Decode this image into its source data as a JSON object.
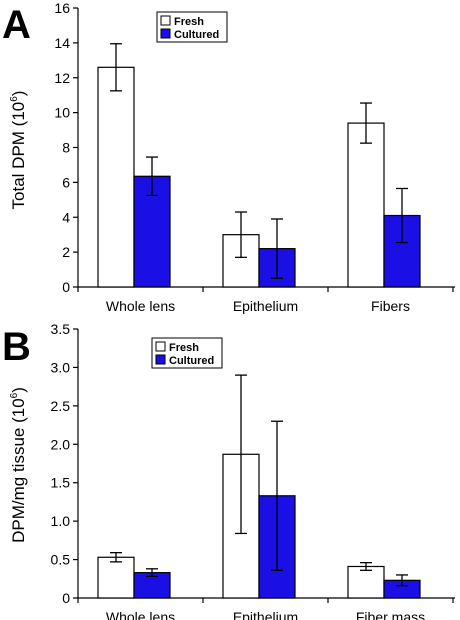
{
  "colors": {
    "fresh": "#ffffff",
    "cultured": "#1a10e6",
    "stroke": "#000000"
  },
  "chart_data": [
    {
      "type": "bar",
      "panel_label": "A",
      "categories": [
        "Whole lens",
        "Epithelium",
        "Fibers"
      ],
      "ylabel_main": "Total DPM (10",
      "ylabel_sup": "6",
      "ylabel_close": ")",
      "ylim": [
        0,
        16
      ],
      "yticks": [
        0,
        2,
        4,
        6,
        8,
        10,
        12,
        14,
        16
      ],
      "ytick_labels": [
        "0",
        "2",
        "4",
        "6",
        "8",
        "10",
        "12",
        "14",
        "16"
      ],
      "legend_position": "top-center",
      "series": [
        {
          "name": "Fresh",
          "values": [
            12.6,
            3.0,
            9.4
          ],
          "error": [
            1.35,
            1.3,
            1.15
          ]
        },
        {
          "name": "Cultured",
          "values": [
            6.35,
            2.2,
            4.1
          ],
          "error": [
            1.1,
            1.7,
            1.55
          ]
        }
      ]
    },
    {
      "type": "bar",
      "panel_label": "B",
      "categories": [
        "Whole lens",
        "Epithelium",
        "Fiber mass"
      ],
      "ylabel_main": "DPM/mg tissue (10",
      "ylabel_sup": "6",
      "ylabel_close": ")",
      "ylim": [
        0,
        3.5
      ],
      "yticks": [
        0,
        0.5,
        1,
        1.5,
        2,
        2.5,
        3,
        3.5
      ],
      "ytick_labels": [
        "0",
        "0.5",
        "1.0",
        "1.5",
        "2.0",
        "2.5",
        "3.0",
        "3.5"
      ],
      "legend_position": "top-center",
      "series": [
        {
          "name": "Fresh",
          "values": [
            0.53,
            1.87,
            0.41
          ],
          "error": [
            0.06,
            1.03,
            0.05
          ]
        },
        {
          "name": "Cultured",
          "values": [
            0.33,
            1.33,
            0.23
          ],
          "error": [
            0.05,
            0.97,
            0.07
          ]
        }
      ]
    }
  ]
}
